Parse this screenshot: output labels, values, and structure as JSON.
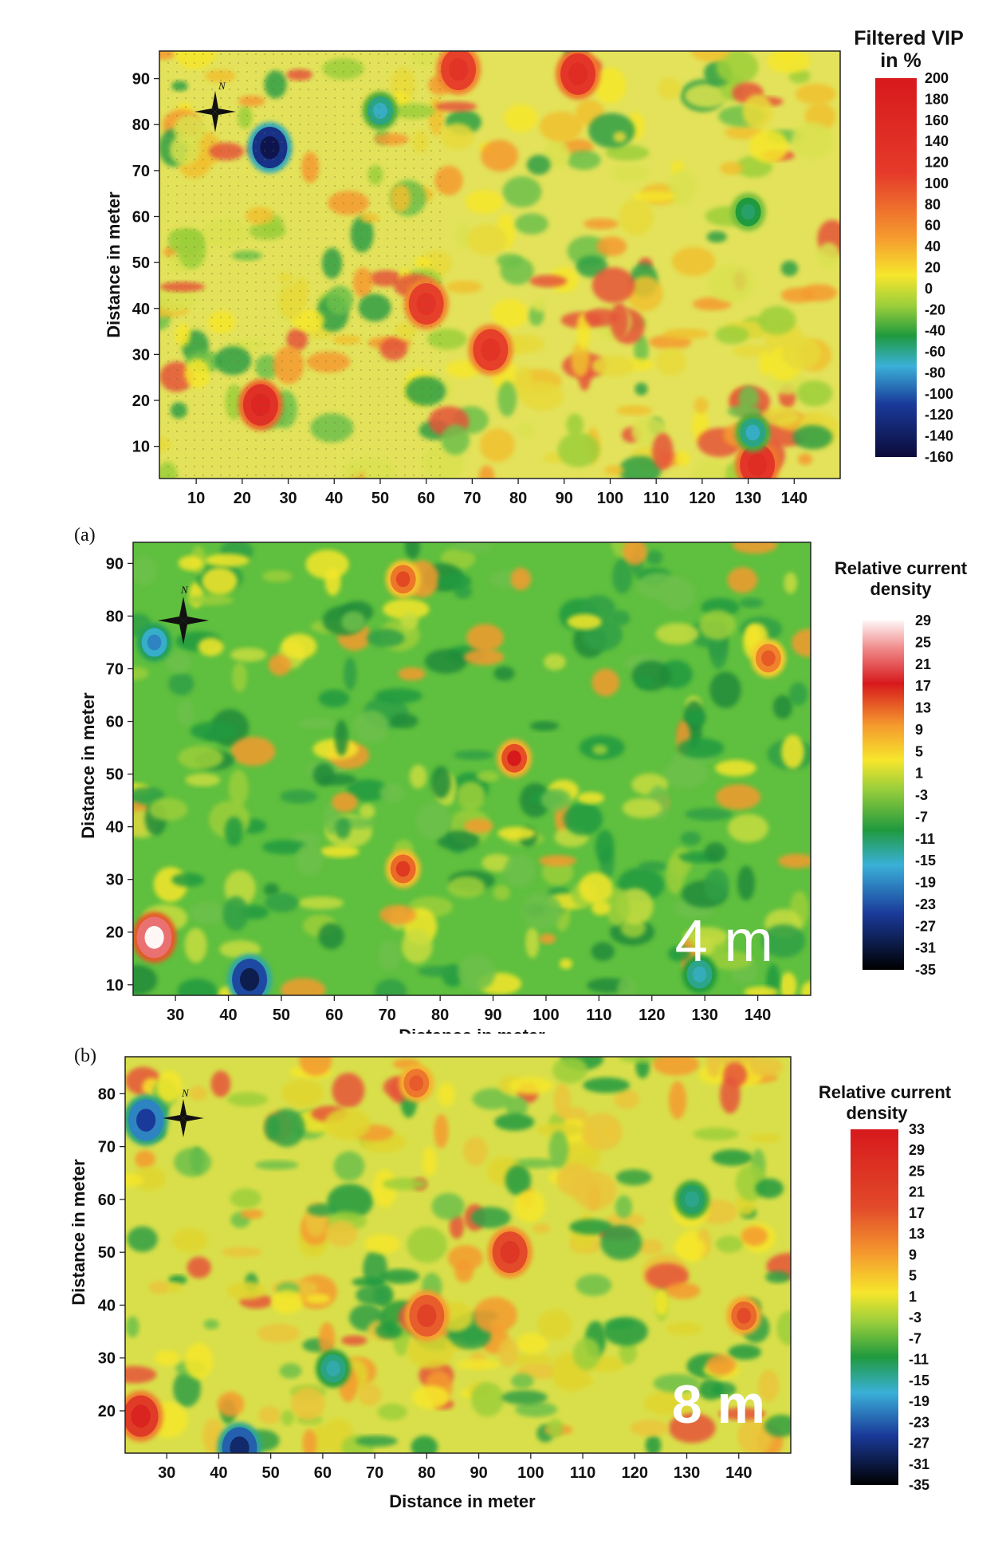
{
  "chart_data": [
    {
      "type": "heatmap",
      "colorbar_title": [
        "Filtered VIP",
        "in  %"
      ],
      "colorbar_ticks": [
        200,
        180,
        160,
        140,
        120,
        100,
        80,
        60,
        40,
        20,
        0,
        -20,
        -40,
        -60,
        -80,
        -100,
        -120,
        -140,
        -160
      ],
      "x_ticks": [
        10,
        20,
        30,
        40,
        50,
        60,
        70,
        80,
        90,
        100,
        110,
        120,
        130,
        140
      ],
      "y_ticks": [
        90,
        80,
        70,
        60,
        50,
        40,
        30,
        20,
        10
      ],
      "xlim": [
        2,
        150
      ],
      "ylim": [
        3,
        96
      ],
      "xlabel": "",
      "ylabel": "Distance in meter",
      "anomalies": [
        {
          "x": 26,
          "y": 75,
          "value": -150
        },
        {
          "x": 24,
          "y": 19,
          "value": 160
        },
        {
          "x": 60,
          "y": 41,
          "value": 120
        },
        {
          "x": 74,
          "y": 31,
          "value": 120
        },
        {
          "x": 67,
          "y": 92,
          "value": 120
        },
        {
          "x": 93,
          "y": 91,
          "value": 140
        },
        {
          "x": 132,
          "y": 6,
          "value": 140
        },
        {
          "x": 50,
          "y": 83,
          "value": -70
        },
        {
          "x": 131,
          "y": 13,
          "value": -70
        },
        {
          "x": 130,
          "y": 61,
          "value": -50
        }
      ],
      "panel_tag": "",
      "depth_label": ""
    },
    {
      "type": "heatmap",
      "colorbar_title": [
        "Relative current",
        "density"
      ],
      "colorbar_ticks": [
        29,
        25,
        21,
        17,
        13,
        9,
        5,
        1,
        -3,
        -7,
        -11,
        -15,
        -19,
        -23,
        -27,
        -31,
        -35
      ],
      "x_ticks": [
        30,
        40,
        50,
        60,
        70,
        80,
        90,
        100,
        110,
        120,
        130,
        140
      ],
      "y_ticks": [
        90,
        80,
        70,
        60,
        50,
        40,
        30,
        20,
        10
      ],
      "xlim": [
        22,
        150
      ],
      "ylim": [
        8,
        94
      ],
      "xlabel": "Distance in meter",
      "ylabel": "Distance in meter",
      "anomalies": [
        {
          "x": 26,
          "y": 19,
          "value": 29
        },
        {
          "x": 26,
          "y": 75,
          "value": -20
        },
        {
          "x": 44,
          "y": 11,
          "value": -30
        },
        {
          "x": 94,
          "y": 53,
          "value": 17
        },
        {
          "x": 73,
          "y": 32,
          "value": 15
        },
        {
          "x": 73,
          "y": 87,
          "value": 14
        },
        {
          "x": 129,
          "y": 12,
          "value": -15
        },
        {
          "x": 142,
          "y": 72,
          "value": 13
        }
      ],
      "panel_tag": "(a)",
      "depth_label": "4 m"
    },
    {
      "type": "heatmap",
      "colorbar_title": [
        "Relative current",
        "density"
      ],
      "colorbar_ticks": [
        33,
        29,
        25,
        21,
        17,
        13,
        9,
        5,
        1,
        -3,
        -7,
        -11,
        -15,
        -19,
        -23,
        -27,
        -31,
        -35
      ],
      "x_ticks": [
        30,
        40,
        50,
        60,
        70,
        80,
        90,
        100,
        110,
        120,
        130,
        140
      ],
      "y_ticks": [
        80,
        70,
        60,
        50,
        40,
        30,
        20
      ],
      "xlim": [
        22,
        150
      ],
      "ylim": [
        12,
        87
      ],
      "xlabel": "Distance in meter",
      "ylabel": "Distance in meter",
      "anomalies": [
        {
          "x": 26,
          "y": 75,
          "value": -25
        },
        {
          "x": 25,
          "y": 19,
          "value": 30
        },
        {
          "x": 44,
          "y": 13,
          "value": -28
        },
        {
          "x": 96,
          "y": 50,
          "value": 25
        },
        {
          "x": 80,
          "y": 38,
          "value": 22
        },
        {
          "x": 62,
          "y": 28,
          "value": -14
        },
        {
          "x": 141,
          "y": 38,
          "value": 20
        },
        {
          "x": 131,
          "y": 60,
          "value": -12
        },
        {
          "x": 78,
          "y": 82,
          "value": 18
        }
      ],
      "panel_tag": "(b)",
      "depth_label": "8 m"
    }
  ]
}
